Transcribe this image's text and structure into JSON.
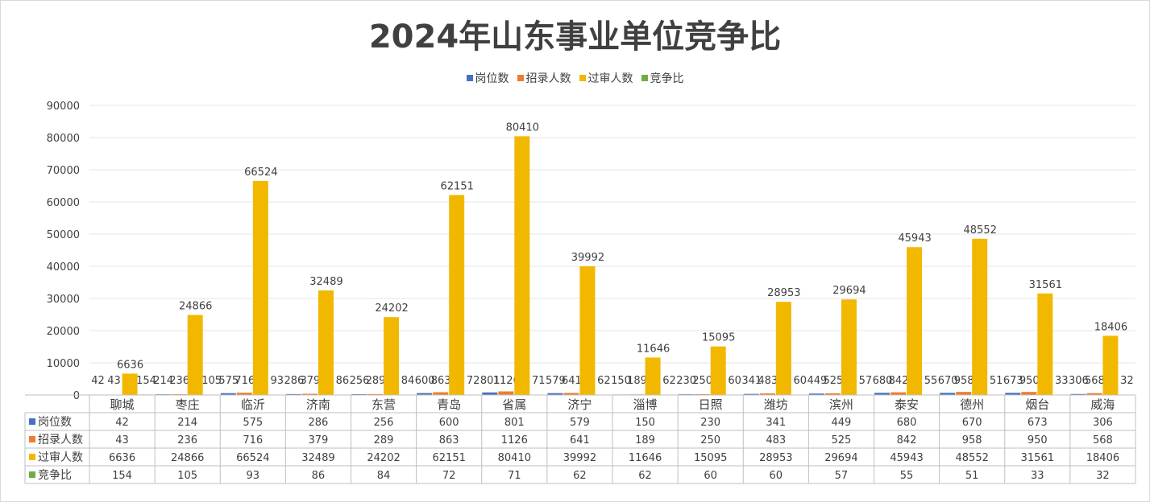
{
  "colors": {
    "岗位数": "#4472C4",
    "招录人数": "#ED7D31",
    "过审人数": "#F2B800",
    "竞争比": "#70AD47",
    "grid": "#e6e6e6",
    "text": "#404040"
  },
  "chart_data": {
    "type": "bar",
    "title": "2024年山东事业单位竞争比",
    "legend_position": "top",
    "grid": true,
    "ylim": [
      0,
      90000
    ],
    "yticks": [
      0,
      10000,
      20000,
      30000,
      40000,
      50000,
      60000,
      70000,
      80000,
      90000
    ],
    "categories": [
      "聊城",
      "枣庄",
      "临沂",
      "济南",
      "东营",
      "青岛",
      "省属",
      "济宁",
      "淄博",
      "日照",
      "潍坊",
      "滨州",
      "泰安",
      "德州",
      "烟台",
      "威海"
    ],
    "series": [
      {
        "name": "岗位数",
        "values": [
          42,
          214,
          575,
          286,
          256,
          600,
          801,
          579,
          150,
          230,
          341,
          449,
          680,
          670,
          673,
          306
        ]
      },
      {
        "name": "招录人数",
        "values": [
          43,
          236,
          716,
          379,
          289,
          863,
          1126,
          641,
          189,
          250,
          483,
          525,
          842,
          958,
          950,
          568
        ]
      },
      {
        "name": "过审人数",
        "values": [
          6636,
          24866,
          66524,
          32489,
          24202,
          62151,
          80410,
          39992,
          11646,
          15095,
          28953,
          29694,
          45943,
          48552,
          31561,
          18406
        ]
      },
      {
        "name": "竞争比",
        "values": [
          154,
          105,
          93,
          86,
          84,
          72,
          71,
          62,
          62,
          60,
          60,
          57,
          55,
          51,
          33,
          32
        ]
      }
    ]
  }
}
